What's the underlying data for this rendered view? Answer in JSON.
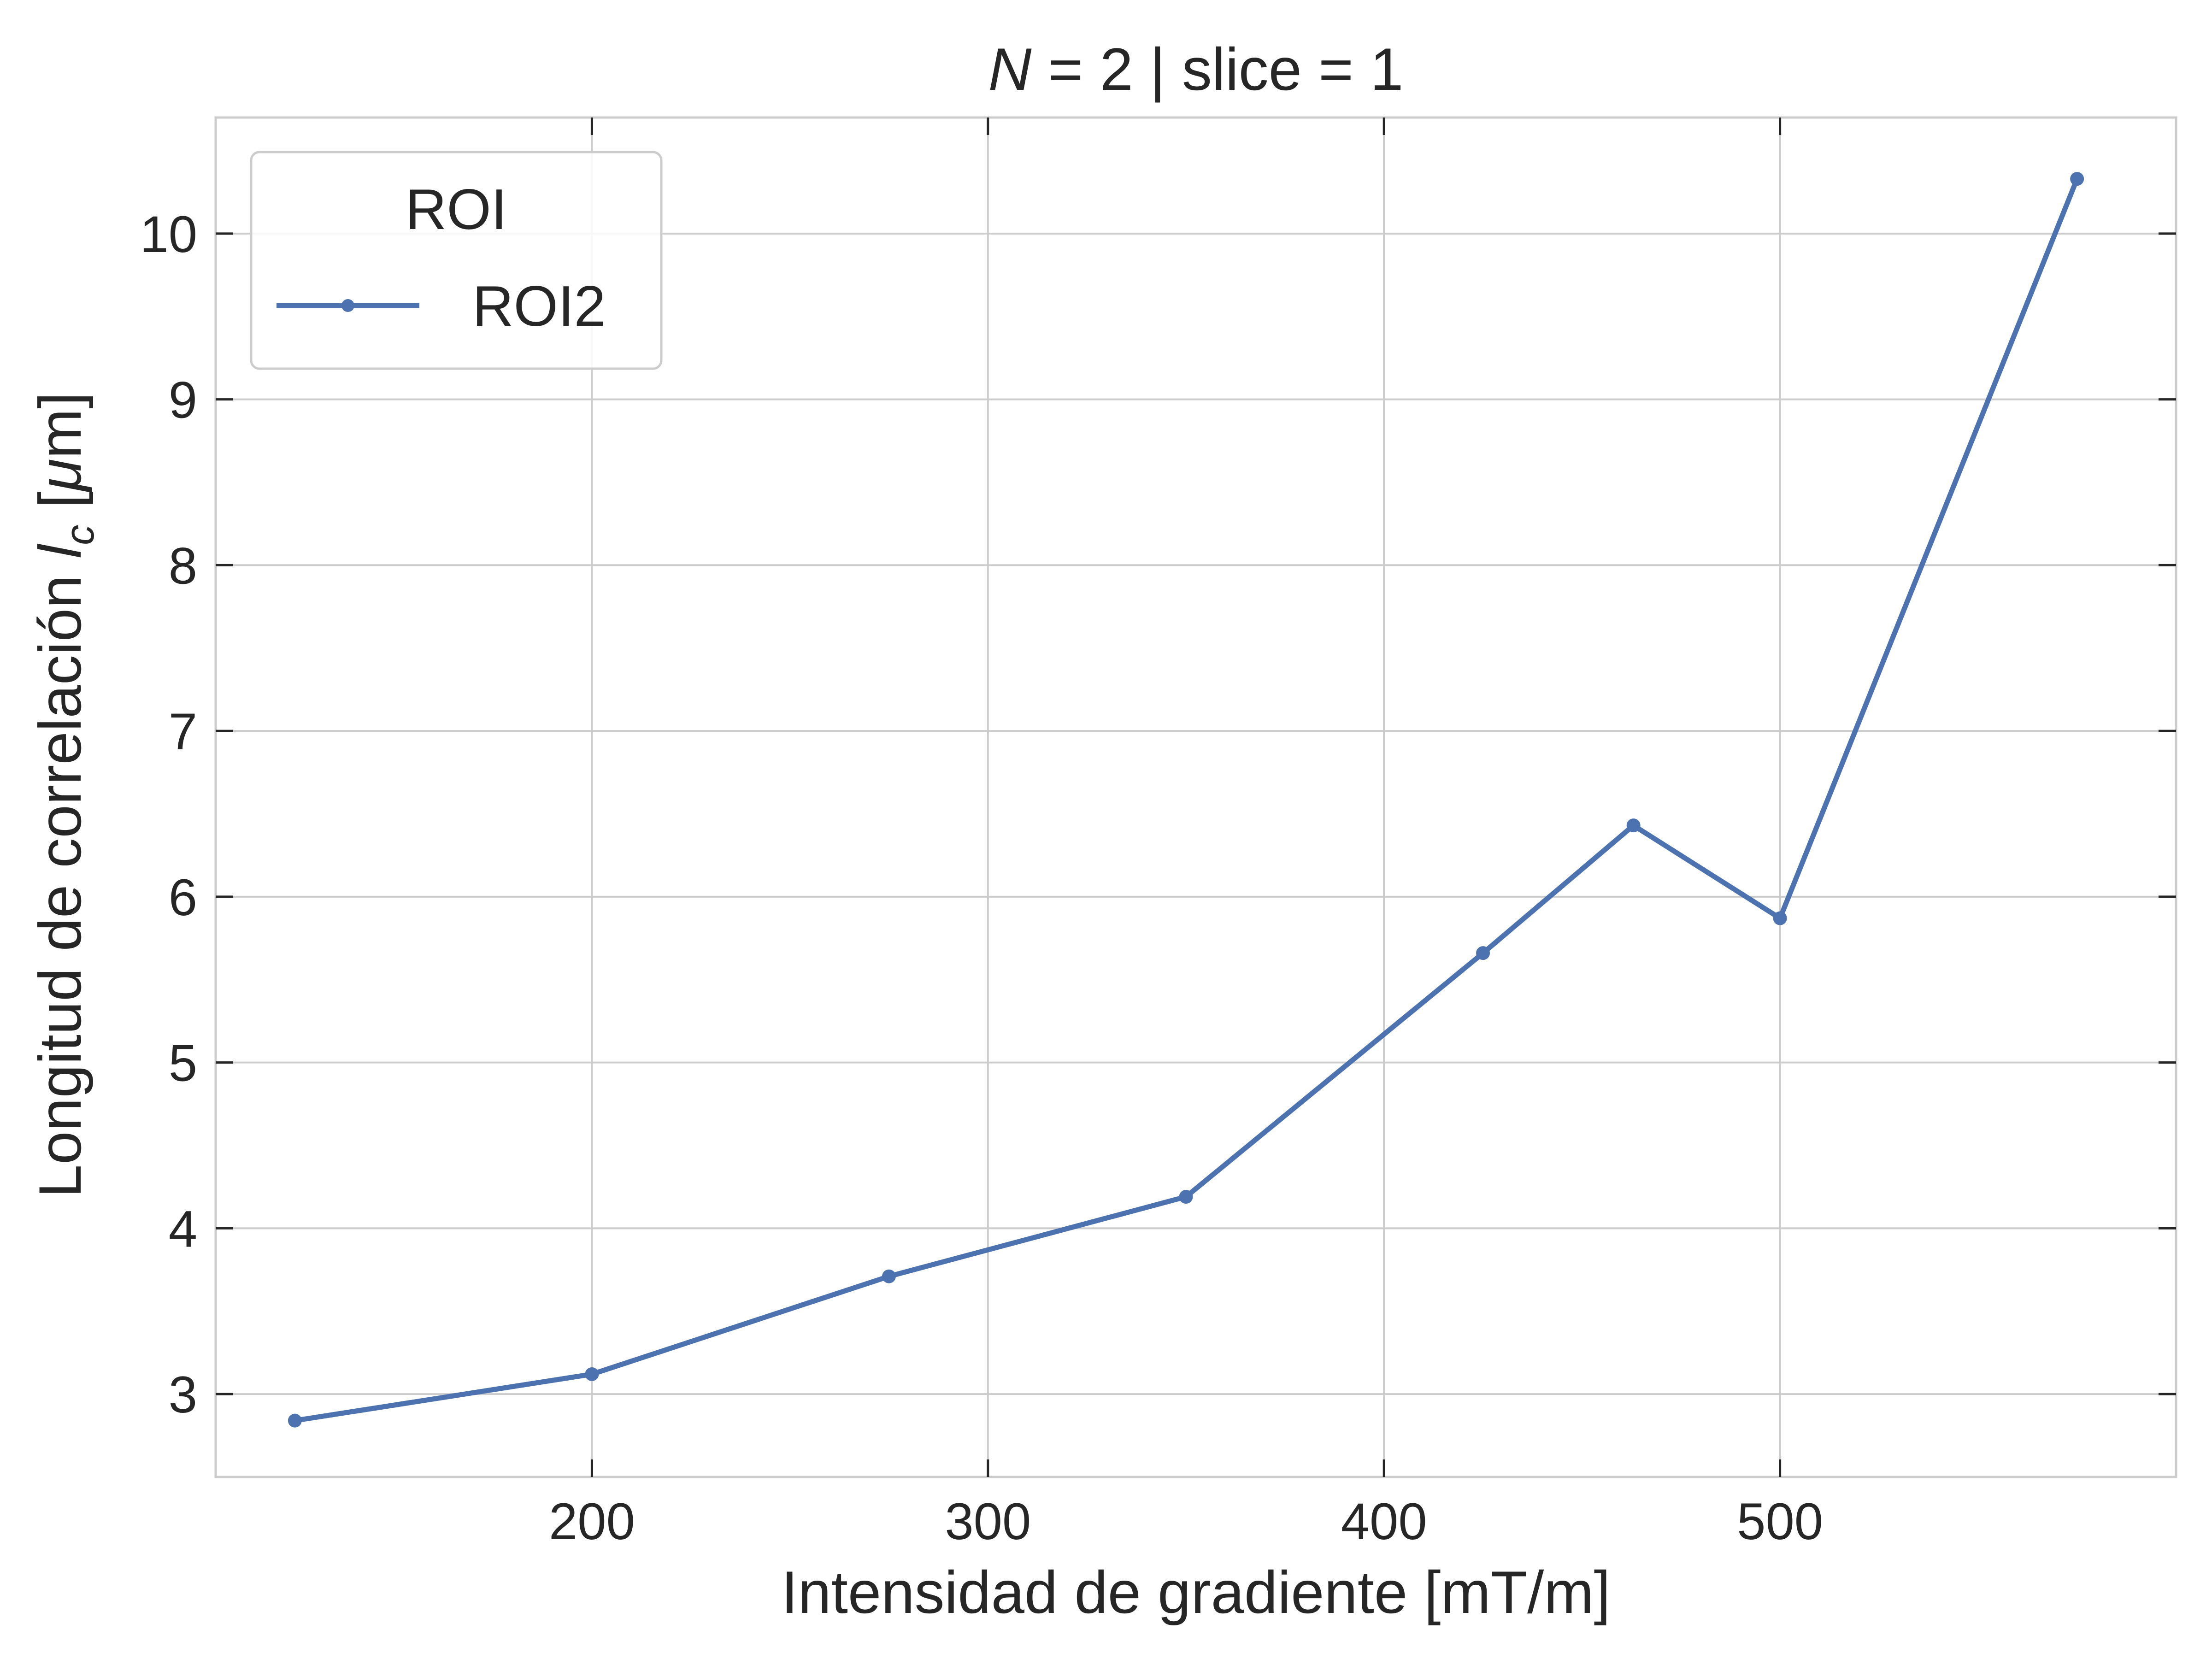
{
  "chart_data": {
    "type": "line",
    "title": {
      "var": "N",
      "rest": " = 2 | slice = 1"
    },
    "xlabel": "Intensidad de gradiente [mT/m]",
    "ylabel": {
      "pre": "Longitud de correlación ",
      "var": "l",
      "sub": "c",
      "mid": " [",
      "mu": "μ",
      "post": "m]"
    },
    "xlim": [
      105,
      600
    ],
    "ylim": [
      2.5,
      10.7
    ],
    "xticks": [
      200,
      300,
      400,
      500
    ],
    "xtick_labels": [
      "200",
      "300",
      "400",
      "500"
    ],
    "yticks": [
      3,
      4,
      5,
      6,
      7,
      8,
      9,
      10
    ],
    "ytick_labels": [
      "3",
      "4",
      "5",
      "6",
      "7",
      "8",
      "9",
      "10"
    ],
    "grid": true,
    "legend": {
      "title": "ROI",
      "placement": "top-left"
    },
    "series": [
      {
        "name": "ROI2",
        "color": "#4c72b0",
        "marker": "circle",
        "x": [
          125,
          200,
          275,
          350,
          425,
          463,
          500,
          575
        ],
        "y": [
          2.84,
          3.12,
          3.71,
          4.19,
          5.66,
          6.43,
          5.87,
          10.33
        ]
      }
    ]
  }
}
